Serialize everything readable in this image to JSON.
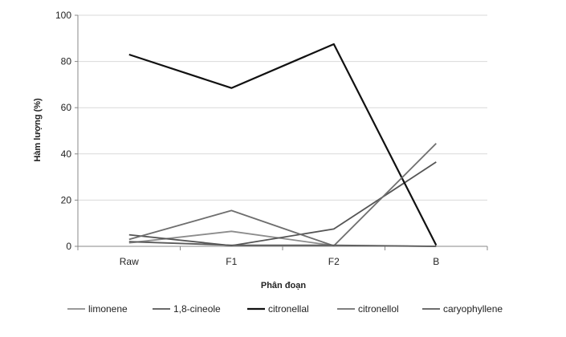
{
  "chart_data": {
    "type": "line",
    "title": "",
    "xlabel": "Phân đoạn",
    "ylabel": "Hàm lượng (%)",
    "categories": [
      "Raw",
      "F1",
      "F2",
      "B"
    ],
    "ylim": [
      0,
      100
    ],
    "yticks": [
      0,
      20,
      40,
      60,
      80,
      100
    ],
    "grid": true,
    "legend_position": "bottom",
    "series": [
      {
        "name": "limonene",
        "color": "#8c8c8c",
        "values": [
          1.5,
          6.5,
          0.3,
          0
        ]
      },
      {
        "name": "1,8-cineole",
        "color": "#555555",
        "values": [
          5,
          0.3,
          7.5,
          36.5
        ]
      },
      {
        "name": "citronellal",
        "color": "#111111",
        "values": [
          83,
          68.5,
          87.5,
          0.5
        ]
      },
      {
        "name": "citronellol",
        "color": "#6e6e6e",
        "values": [
          3,
          15.5,
          0.2,
          44.5
        ]
      },
      {
        "name": "caryophyllene",
        "color": "#5a5a5a",
        "values": [
          2,
          0.5,
          0.5,
          0
        ]
      }
    ]
  }
}
